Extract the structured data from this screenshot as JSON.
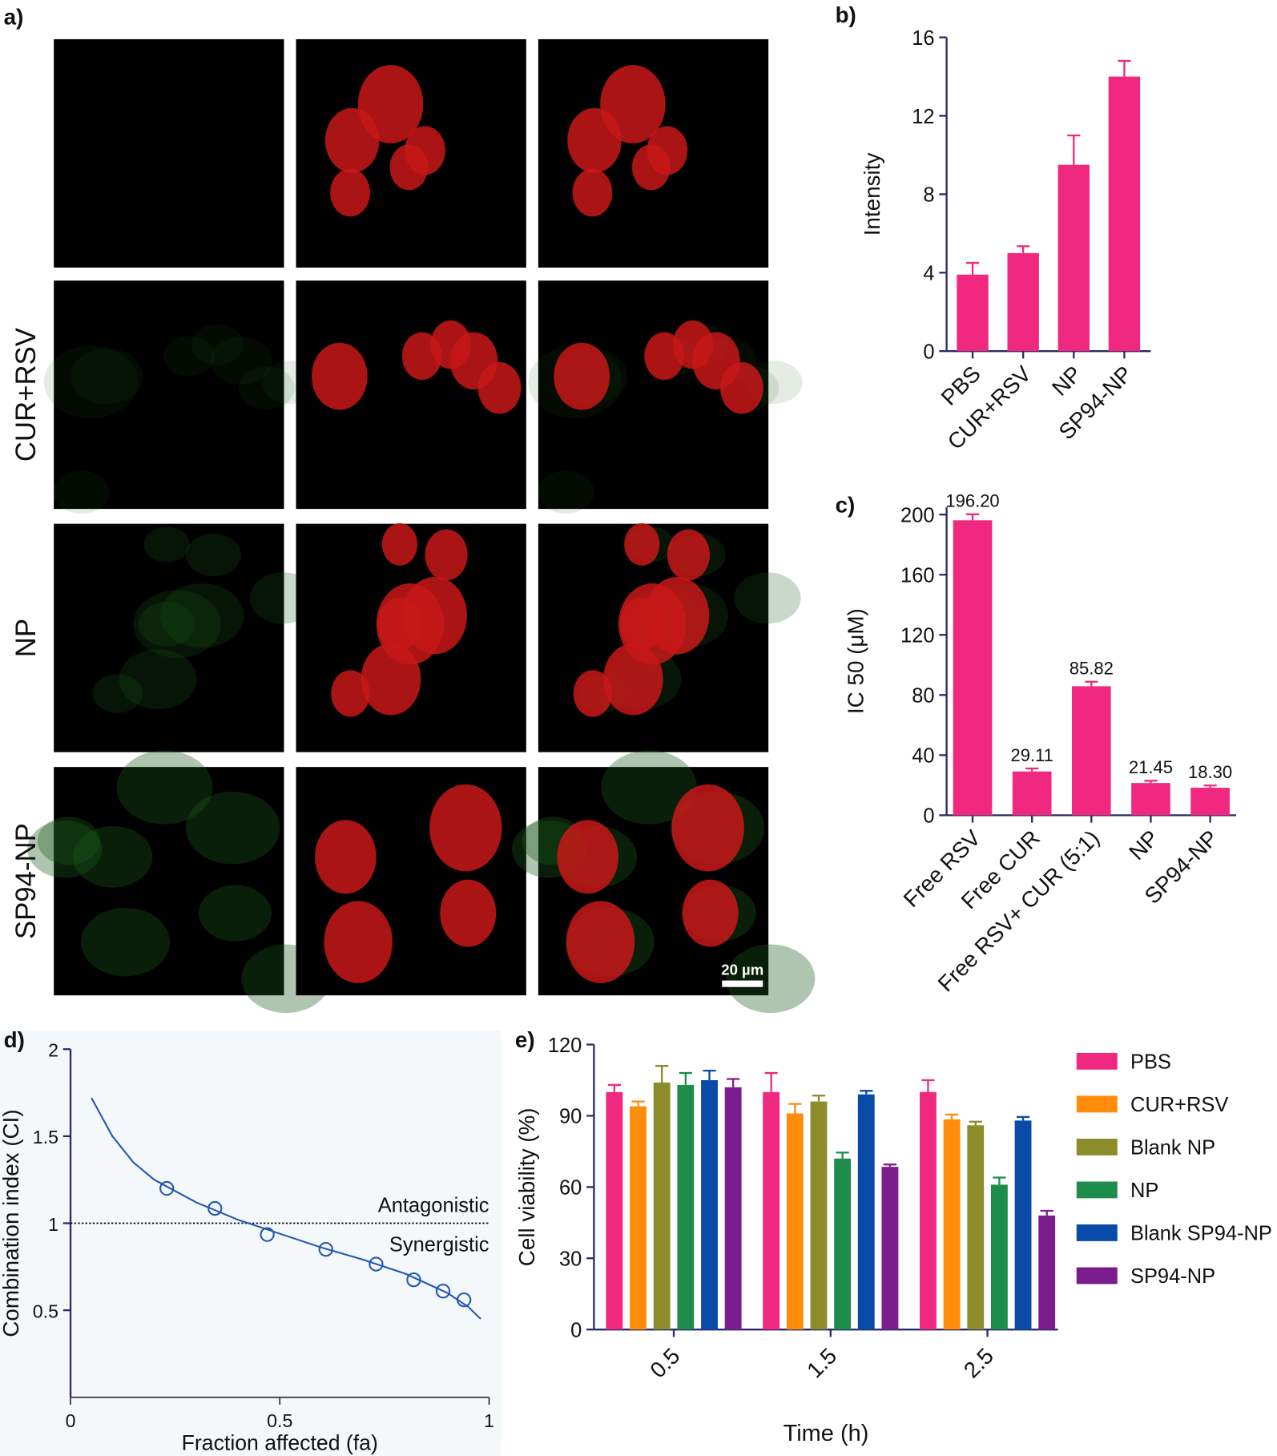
{
  "panel_a": {
    "label": "a)",
    "row_labels": [
      "CUR+RSV",
      "NP",
      "SP94-NP"
    ],
    "scale_bar": "20 µm"
  },
  "chart_data": [
    {
      "type": "bar",
      "panel_label": "b)",
      "y_label": "Intensity",
      "categories": [
        "PBS",
        "CUR+RSV",
        "NP",
        "SP94-NP"
      ],
      "values": [
        3.9,
        5.0,
        9.5,
        14.0
      ],
      "errors": [
        0.6,
        0.35,
        1.5,
        0.8
      ],
      "color": "#f0287f",
      "ylim": [
        0,
        16
      ],
      "yticks": [
        0,
        4,
        8,
        12,
        16
      ]
    },
    {
      "type": "bar",
      "panel_label": "c)",
      "y_label": "IC 50 (μM)",
      "categories": [
        "Free RSV",
        "Free CUR",
        "Free RSV+ CUR (5:1)",
        "NP",
        "SP94-NP"
      ],
      "values": [
        196.2,
        29.11,
        85.82,
        21.45,
        18.3
      ],
      "value_labels": [
        "196.20",
        "29.11",
        "85.82",
        "21.45",
        "18.30"
      ],
      "errors": [
        4,
        2,
        3,
        1.5,
        1.5
      ],
      "color": "#f0287f",
      "ylim": [
        0,
        205
      ],
      "yticks": [
        0,
        40,
        80,
        120,
        160,
        200
      ]
    },
    {
      "type": "line",
      "panel_label": "d)",
      "x_label": "Fraction affected (fa)",
      "y_label": "Combination index (CI)",
      "curve": {
        "x": [
          0.05,
          0.1,
          0.15,
          0.2,
          0.3,
          0.4,
          0.5,
          0.6,
          0.7,
          0.8,
          0.9,
          0.95,
          0.98
        ],
        "y": [
          1.72,
          1.5,
          1.35,
          1.25,
          1.12,
          1.02,
          0.94,
          0.86,
          0.79,
          0.71,
          0.6,
          0.52,
          0.45
        ]
      },
      "points": {
        "x": [
          0.23,
          0.345,
          0.47,
          0.61,
          0.73,
          0.82,
          0.89,
          0.94
        ],
        "y": [
          1.2,
          1.085,
          0.935,
          0.85,
          0.765,
          0.675,
          0.61,
          0.56
        ]
      },
      "color": "#2456b0",
      "reference_line": 1,
      "annotations": [
        "Antagonistic",
        "Synergistic"
      ],
      "xlim": [
        0,
        1
      ],
      "ylim": [
        0,
        2
      ],
      "xticks": [
        0,
        0.5,
        1
      ],
      "yticks": [
        0.5,
        1,
        1.5,
        2
      ]
    },
    {
      "type": "grouped_bar",
      "panel_label": "e)",
      "x_label": "Time (h)",
      "y_label": "Cell viability (%)",
      "categories": [
        "0.5",
        "1.5",
        "2.5"
      ],
      "series": [
        {
          "name": "PBS",
          "color": "#f0287f",
          "values": [
            100,
            100,
            100
          ],
          "errors": [
            3,
            8,
            5
          ]
        },
        {
          "name": "CUR+RSV",
          "color": "#ff8c0a",
          "values": [
            94,
            91,
            88.5
          ],
          "errors": [
            2,
            4,
            2
          ]
        },
        {
          "name": "Blank NP",
          "color": "#8c8c2a",
          "values": [
            104,
            96,
            86
          ],
          "errors": [
            7,
            2.5,
            1.5
          ]
        },
        {
          "name": "NP",
          "color": "#1e8c4a",
          "values": [
            103,
            72,
            61
          ],
          "errors": [
            5,
            2.5,
            3
          ]
        },
        {
          "name": "Blank SP94-NP",
          "color": "#0a4aa8",
          "values": [
            105,
            99,
            88
          ],
          "errors": [
            4,
            1.5,
            1.5
          ]
        },
        {
          "name": "SP94-NP",
          "color": "#7a1c8c",
          "values": [
            102,
            68.5,
            48
          ],
          "errors": [
            3.5,
            1,
            2
          ]
        }
      ],
      "ylim": [
        0,
        120
      ],
      "yticks": [
        0,
        30,
        60,
        90,
        120
      ],
      "legend": "right"
    }
  ]
}
